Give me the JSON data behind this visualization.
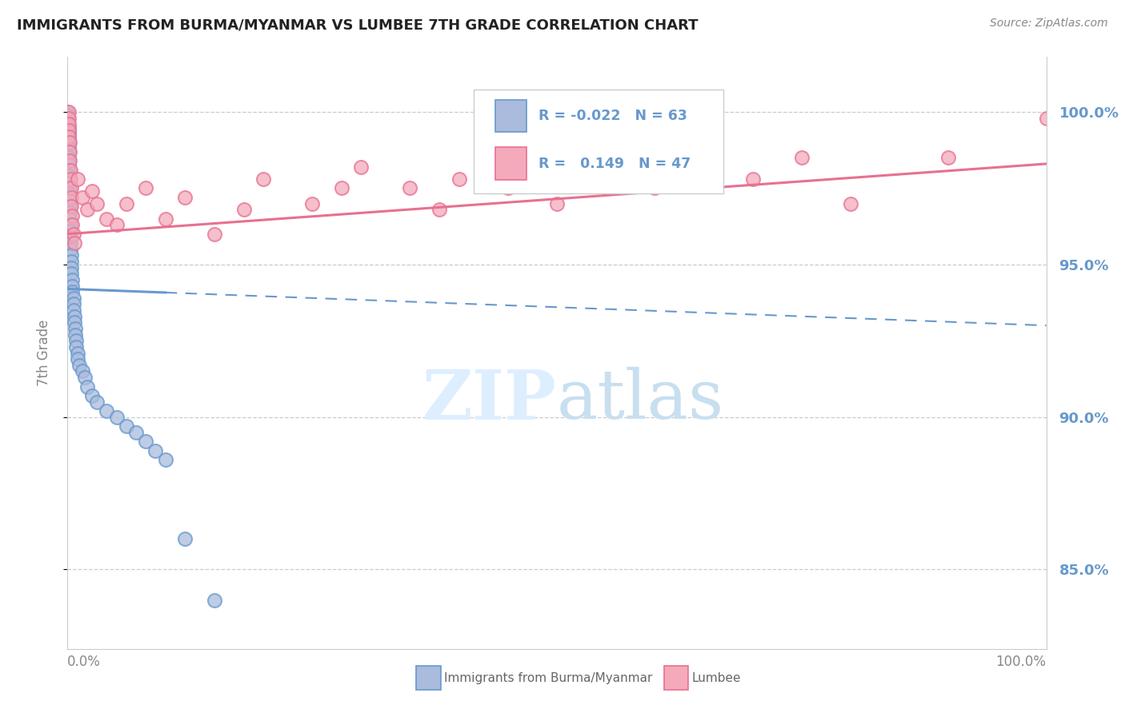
{
  "title": "IMMIGRANTS FROM BURMA/MYANMAR VS LUMBEE 7TH GRADE CORRELATION CHART",
  "source": "Source: ZipAtlas.com",
  "ylabel": "7th Grade",
  "ytick_labels": [
    "85.0%",
    "90.0%",
    "95.0%",
    "100.0%"
  ],
  "ytick_values": [
    0.85,
    0.9,
    0.95,
    1.0
  ],
  "xlim": [
    0.0,
    1.0
  ],
  "ylim": [
    0.824,
    1.018
  ],
  "r_blue": -0.022,
  "n_blue": 63,
  "r_pink": 0.149,
  "n_pink": 47,
  "blue_color": "#6699cc",
  "pink_color": "#e87090",
  "blue_scatter_fill": "#aabbdd",
  "pink_scatter_fill": "#f4aabb",
  "watermark_color": "#ddeeff",
  "blue_trend_solid_end": 0.1,
  "blue_trend_y0": 0.942,
  "blue_trend_y1": 0.93,
  "pink_trend_y0": 0.96,
  "pink_trend_y1": 0.983,
  "blue_scatter_x": [
    0.0,
    0.0,
    0.0,
    0.0,
    0.0,
    0.001,
    0.001,
    0.001,
    0.001,
    0.001,
    0.001,
    0.001,
    0.001,
    0.001,
    0.001,
    0.001,
    0.001,
    0.001,
    0.002,
    0.002,
    0.002,
    0.002,
    0.002,
    0.002,
    0.002,
    0.003,
    0.003,
    0.003,
    0.003,
    0.003,
    0.004,
    0.004,
    0.004,
    0.004,
    0.005,
    0.005,
    0.005,
    0.006,
    0.006,
    0.006,
    0.007,
    0.007,
    0.008,
    0.008,
    0.009,
    0.009,
    0.01,
    0.01,
    0.012,
    0.015,
    0.018,
    0.02,
    0.025,
    0.03,
    0.04,
    0.05,
    0.06,
    0.07,
    0.08,
    0.09,
    0.1,
    0.12,
    0.15
  ],
  "blue_scatter_y": [
    1.0,
    0.999,
    0.998,
    0.997,
    0.996,
    0.995,
    0.994,
    0.993,
    0.992,
    0.991,
    0.99,
    0.989,
    0.988,
    0.987,
    0.985,
    0.983,
    0.981,
    0.979,
    0.977,
    0.975,
    0.973,
    0.971,
    0.969,
    0.967,
    0.965,
    0.963,
    0.961,
    0.959,
    0.957,
    0.955,
    0.953,
    0.951,
    0.949,
    0.947,
    0.945,
    0.943,
    0.941,
    0.939,
    0.937,
    0.935,
    0.933,
    0.931,
    0.929,
    0.927,
    0.925,
    0.923,
    0.921,
    0.919,
    0.917,
    0.915,
    0.913,
    0.91,
    0.907,
    0.905,
    0.902,
    0.9,
    0.897,
    0.895,
    0.892,
    0.889,
    0.886,
    0.86,
    0.84
  ],
  "pink_scatter_x": [
    0.001,
    0.001,
    0.001,
    0.001,
    0.001,
    0.002,
    0.002,
    0.002,
    0.003,
    0.003,
    0.004,
    0.004,
    0.004,
    0.005,
    0.005,
    0.006,
    0.007,
    0.01,
    0.015,
    0.02,
    0.025,
    0.03,
    0.04,
    0.05,
    0.06,
    0.08,
    0.1,
    0.12,
    0.15,
    0.18,
    0.2,
    0.25,
    0.28,
    0.3,
    0.35,
    0.38,
    0.4,
    0.45,
    0.5,
    0.55,
    0.6,
    0.65,
    0.7,
    0.75,
    0.8,
    0.9,
    1.0
  ],
  "pink_scatter_y": [
    1.0,
    0.998,
    0.996,
    0.994,
    0.992,
    0.99,
    0.987,
    0.984,
    0.981,
    0.978,
    0.975,
    0.972,
    0.969,
    0.966,
    0.963,
    0.96,
    0.957,
    0.978,
    0.972,
    0.968,
    0.974,
    0.97,
    0.965,
    0.963,
    0.97,
    0.975,
    0.965,
    0.972,
    0.96,
    0.968,
    0.978,
    0.97,
    0.975,
    0.982,
    0.975,
    0.968,
    0.978,
    0.975,
    0.97,
    0.978,
    0.975,
    0.98,
    0.978,
    0.985,
    0.97,
    0.985,
    0.998
  ]
}
